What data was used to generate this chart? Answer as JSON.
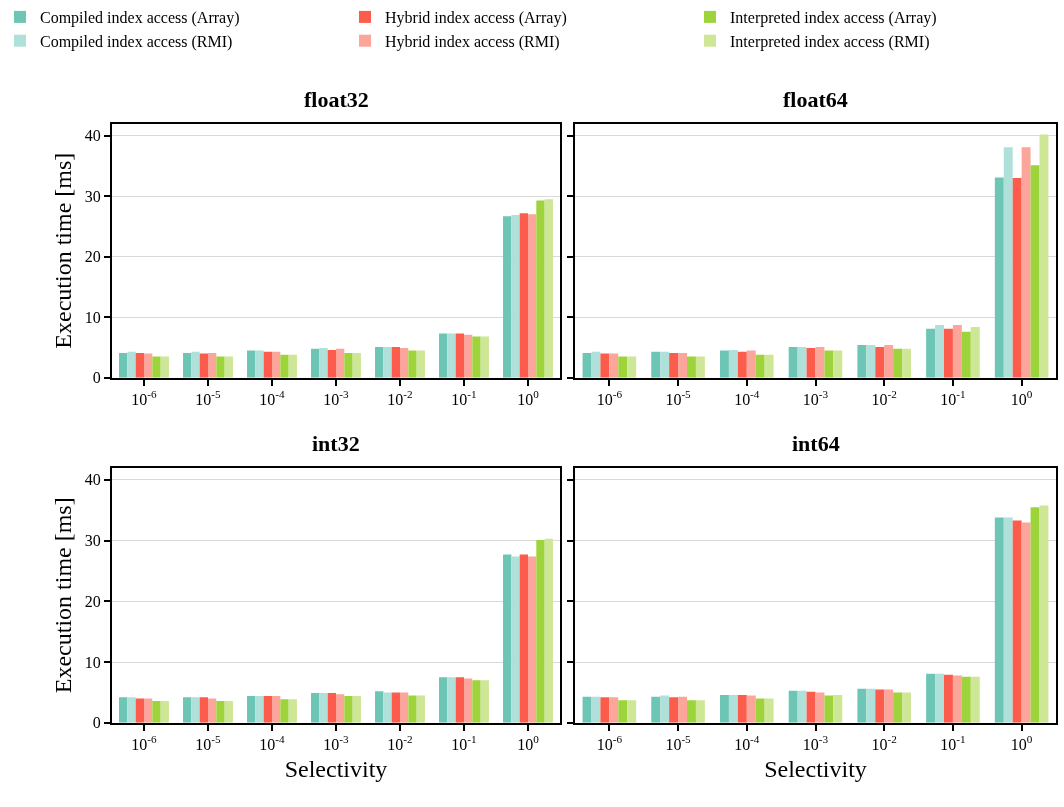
{
  "chart_data": [
    {
      "type": "bar",
      "title": "float32",
      "ylabel": "Execution time [ms]",
      "categories": [
        "10$^{-6}$",
        "10$^{-5}$",
        "10$^{-4}$",
        "10$^{-3}$",
        "10$^{-2}$",
        "10$^{-1}$",
        "10$^{0}$"
      ],
      "ylim": [
        0,
        42
      ],
      "yticks": [
        0,
        10,
        20,
        30,
        40
      ],
      "grid": "y",
      "legend": "top",
      "series": [
        {
          "name": "Compiled index access (Array)",
          "color": "#6cc5b5",
          "values": [
            4.1,
            4.1,
            4.5,
            4.8,
            5.1,
            7.3,
            26.7
          ]
        },
        {
          "name": "Compiled index access (RMI)",
          "color": "#afe0d9",
          "values": [
            4.3,
            4.3,
            4.5,
            4.9,
            5.1,
            7.3,
            26.9
          ]
        },
        {
          "name": "Hybrid index access (Array)",
          "color": "#fc5c4c",
          "values": [
            4.1,
            4.0,
            4.3,
            4.6,
            5.1,
            7.3,
            27.2
          ]
        },
        {
          "name": "Hybrid index access (RMI)",
          "color": "#fca59b",
          "values": [
            4.0,
            4.1,
            4.3,
            4.8,
            4.9,
            7.1,
            27.0
          ]
        },
        {
          "name": "Interpreted index access (Array)",
          "color": "#9dd43b",
          "values": [
            3.5,
            3.5,
            3.8,
            4.1,
            4.5,
            6.8,
            29.3
          ]
        },
        {
          "name": "Interpreted index access (RMI)",
          "color": "#cde796",
          "values": [
            3.5,
            3.5,
            3.8,
            4.1,
            4.5,
            6.8,
            29.5
          ]
        }
      ]
    },
    {
      "type": "bar",
      "title": "float64",
      "categories": [
        "10$^{-6}$",
        "10$^{-5}$",
        "10$^{-4}$",
        "10$^{-3}$",
        "10$^{-2}$",
        "10$^{-1}$",
        "10$^{0}$"
      ],
      "ylim": [
        0,
        42
      ],
      "yticks": [
        0,
        10,
        20,
        30,
        40
      ],
      "grid": "y",
      "tick_labels": "x",
      "series": [
        {
          "color": "#6cc5b5",
          "values": [
            4.1,
            4.3,
            4.5,
            5.1,
            5.4,
            8.1,
            33.1
          ]
        },
        {
          "color": "#afe0d9",
          "values": [
            4.3,
            4.3,
            4.6,
            5.1,
            5.4,
            8.7,
            38.1
          ]
        },
        {
          "color": "#fc5c4c",
          "values": [
            4.0,
            4.1,
            4.3,
            4.9,
            5.1,
            8.1,
            33.0
          ]
        },
        {
          "color": "#fca59b",
          "values": [
            4.0,
            4.1,
            4.5,
            5.1,
            5.4,
            8.7,
            38.1
          ]
        },
        {
          "color": "#9dd43b",
          "values": [
            3.5,
            3.5,
            3.8,
            4.5,
            4.8,
            7.6,
            35.1
          ]
        },
        {
          "color": "#cde796",
          "values": [
            3.5,
            3.5,
            3.8,
            4.5,
            4.8,
            8.4,
            40.2
          ]
        }
      ]
    },
    {
      "type": "bar",
      "title": "int32",
      "xlabel": "Selectivity",
      "ylabel": "Execution time [ms]",
      "categories": [
        "10$^{-6}$",
        "10$^{-5}$",
        "10$^{-4}$",
        "10$^{-3}$",
        "10$^{-2}$",
        "10$^{-1}$",
        "10$^{0}$"
      ],
      "ylim": [
        0,
        42
      ],
      "yticks": [
        0,
        10,
        20,
        30,
        40
      ],
      "grid": "y",
      "series": [
        {
          "color": "#6cc5b5",
          "values": [
            4.2,
            4.2,
            4.4,
            4.9,
            5.2,
            7.5,
            27.7
          ]
        },
        {
          "color": "#afe0d9",
          "values": [
            4.2,
            4.2,
            4.4,
            4.9,
            5.0,
            7.5,
            27.4
          ]
        },
        {
          "color": "#fc5c4c",
          "values": [
            4.0,
            4.2,
            4.4,
            4.9,
            5.0,
            7.5,
            27.7
          ]
        },
        {
          "color": "#fca59b",
          "values": [
            4.0,
            4.0,
            4.4,
            4.7,
            5.0,
            7.3,
            27.4
          ]
        },
        {
          "color": "#9dd43b",
          "values": [
            3.6,
            3.6,
            3.9,
            4.4,
            4.5,
            7.0,
            30.1
          ]
        },
        {
          "color": "#cde796",
          "values": [
            3.6,
            3.6,
            3.9,
            4.4,
            4.5,
            7.0,
            30.3
          ]
        }
      ]
    },
    {
      "type": "bar",
      "title": "int64",
      "xlabel": "Selectivity",
      "categories": [
        "10$^{-6}$",
        "10$^{-5}$",
        "10$^{-4}$",
        "10$^{-3}$",
        "10$^{-2}$",
        "10$^{-1}$",
        "10$^{0}$"
      ],
      "ylim": [
        0,
        42
      ],
      "yticks": [
        0,
        10,
        20,
        30,
        40
      ],
      "grid": "y",
      "tick_labels": "x",
      "series": [
        {
          "color": "#6cc5b5",
          "values": [
            4.3,
            4.3,
            4.6,
            5.3,
            5.6,
            8.1,
            33.8
          ]
        },
        {
          "color": "#afe0d9",
          "values": [
            4.3,
            4.5,
            4.6,
            5.3,
            5.6,
            8.1,
            33.8
          ]
        },
        {
          "color": "#fc5c4c",
          "values": [
            4.2,
            4.2,
            4.6,
            5.1,
            5.5,
            7.9,
            33.3
          ]
        },
        {
          "color": "#fca59b",
          "values": [
            4.2,
            4.3,
            4.5,
            5.0,
            5.5,
            7.8,
            33.0
          ]
        },
        {
          "color": "#9dd43b",
          "values": [
            3.7,
            3.7,
            4.0,
            4.5,
            5.0,
            7.6,
            35.5
          ]
        },
        {
          "color": "#cde796",
          "values": [
            3.7,
            3.7,
            4.0,
            4.6,
            5.0,
            7.6,
            35.8
          ]
        }
      ]
    }
  ]
}
